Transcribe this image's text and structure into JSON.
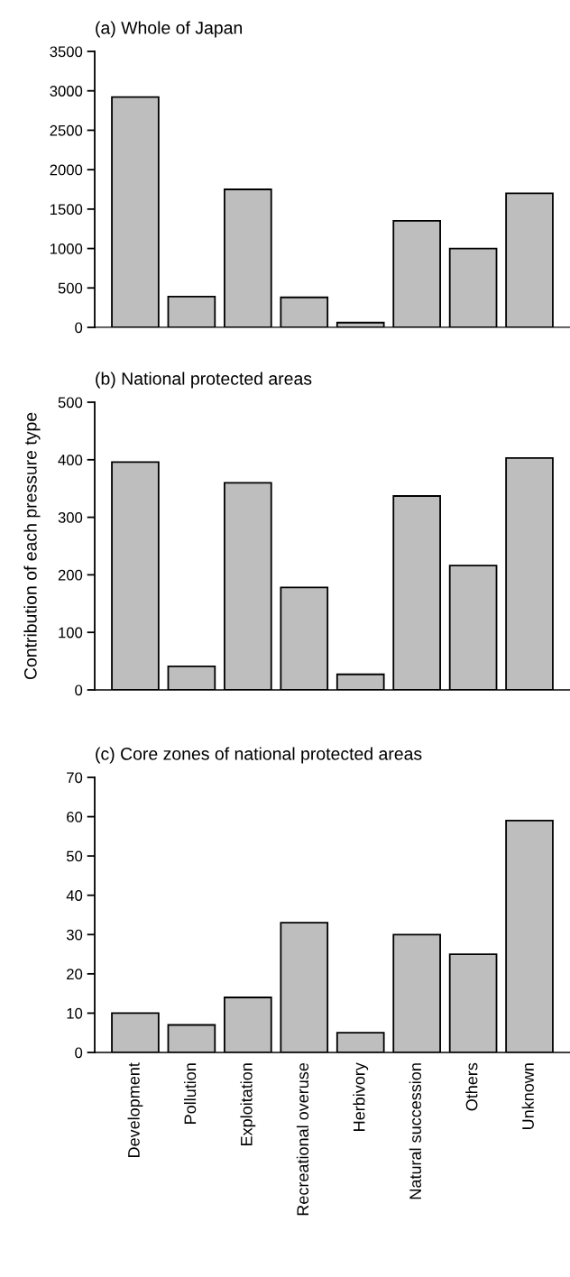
{
  "chart_data": [
    {
      "type": "bar",
      "title": "(a) Whole of Japan",
      "categories": [
        null,
        null,
        null,
        null,
        null,
        null,
        null,
        null
      ],
      "values": [
        2920,
        390,
        1750,
        380,
        60,
        1350,
        1000,
        1700
      ],
      "color": "#bebebe",
      "ylim": [
        0,
        3500
      ],
      "yticks": [
        0,
        500,
        1000,
        1500,
        2000,
        2500,
        3000,
        3500
      ],
      "tick_labels": "y",
      "grid": false
    },
    {
      "type": "bar",
      "title": "(b) National protected areas",
      "ylabel": "Contribution of each pressure type",
      "categories": [
        null,
        null,
        null,
        null,
        null,
        null,
        null,
        null
      ],
      "values": [
        396,
        41,
        360,
        178,
        27,
        337,
        216,
        403
      ],
      "color": "#bebebe",
      "ylim": [
        0,
        500
      ],
      "yticks": [
        0,
        100,
        200,
        300,
        400,
        500
      ],
      "tick_labels": "y",
      "grid": false
    },
    {
      "type": "bar",
      "title": "(c) Core zones of national protected areas",
      "categories": [
        "Development",
        "Pollution",
        "Exploitation",
        "Recreational overuse",
        "Herbivory",
        "Natural succession",
        "Others",
        "Unknown"
      ],
      "values": [
        10,
        7,
        14,
        33,
        5,
        30,
        25,
        59
      ],
      "color": "#bebebe",
      "ylim": [
        0,
        70
      ],
      "yticks": [
        0,
        10,
        20,
        30,
        40,
        50,
        60,
        70
      ],
      "grid": false
    }
  ]
}
